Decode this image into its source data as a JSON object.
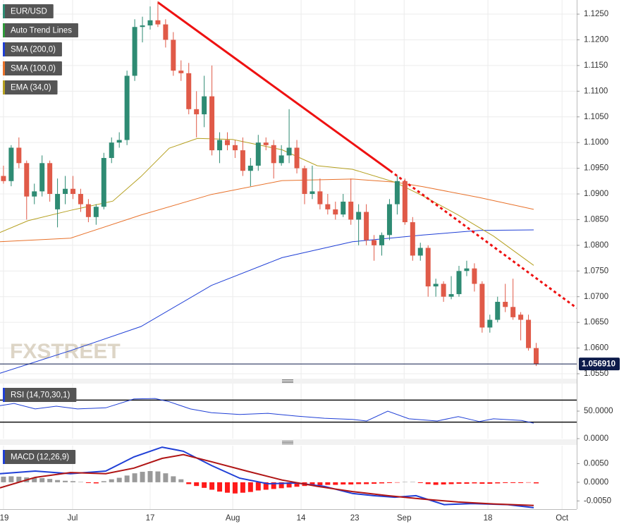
{
  "chart_data": [
    {
      "type": "candlestick",
      "watermark": "FXSTREET",
      "candles": {
        "name": "EUR/USD",
        "up_color": "#2e8b73",
        "down_color": "#e05a48",
        "x": [
          1,
          2,
          3,
          4,
          5,
          6,
          7,
          8,
          9,
          10,
          11,
          12,
          13,
          14,
          15,
          16,
          17,
          18,
          19,
          20,
          21,
          22,
          23,
          24,
          25,
          26,
          27,
          28,
          29,
          30,
          31,
          32,
          33,
          34,
          35,
          36,
          37,
          38,
          39,
          40,
          41,
          42,
          43,
          44,
          45,
          46,
          47,
          48,
          49,
          50,
          51,
          52,
          53,
          54,
          55,
          56,
          57,
          58,
          59,
          60,
          61,
          62,
          63,
          64,
          65,
          66,
          67,
          68,
          69,
          70
        ],
        "open": [
          1.0935,
          1.0925,
          1.099,
          1.096,
          1.0895,
          1.0905,
          1.096,
          1.087,
          1.09,
          1.091,
          1.09,
          1.088,
          1.0855,
          1.0875,
          1.097,
          1.1,
          1.1005,
          1.113,
          1.1225,
          1.1228,
          1.1238,
          1.123,
          1.12,
          1.114,
          1.1135,
          1.1065,
          1.1055,
          1.109,
          1.0985,
          1.1005,
          1.0995,
          1.0985,
          1.0945,
          1.0955,
          1.1,
          1.0995,
          1.096,
          1.0975,
          1.099,
          1.095,
          1.09,
          1.0905,
          1.088,
          1.087,
          1.086,
          1.0885,
          1.085,
          1.0865,
          1.081,
          1.08,
          1.082,
          1.088,
          1.0925,
          1.0845,
          1.078,
          1.0795,
          1.072,
          1.0725,
          1.07,
          1.0705,
          1.075,
          1.0755,
          1.0725,
          1.064,
          1.0655,
          1.069,
          1.068,
          1.0665,
          1.0655,
          1.06
        ],
        "high": [
          1.0955,
          1.0995,
          1.101,
          1.0965,
          1.092,
          1.0975,
          1.0965,
          1.093,
          1.0935,
          1.0935,
          1.091,
          1.089,
          1.088,
          1.098,
          1.101,
          1.102,
          1.114,
          1.124,
          1.1245,
          1.1265,
          1.1275,
          1.124,
          1.1215,
          1.116,
          1.1155,
          1.11,
          1.113,
          1.115,
          1.102,
          1.102,
          1.1005,
          1.101,
          1.097,
          1.1015,
          1.101,
          1.1005,
          1.0995,
          1.1065,
          1.1005,
          1.0955,
          1.0955,
          1.093,
          1.09,
          1.0885,
          1.09,
          1.093,
          1.088,
          1.088,
          1.082,
          1.0825,
          1.089,
          1.0935,
          1.093,
          1.0855,
          1.0805,
          1.08,
          1.0735,
          1.073,
          1.074,
          1.076,
          1.077,
          1.0765,
          1.073,
          1.0665,
          1.07,
          1.0725,
          1.0735,
          1.067,
          1.0665,
          1.061
        ],
        "low": [
          1.092,
          1.0915,
          1.095,
          1.085,
          1.088,
          1.0895,
          1.0885,
          1.0835,
          1.088,
          1.089,
          1.0865,
          1.0845,
          1.084,
          1.087,
          1.096,
          1.099,
          1.0995,
          1.112,
          1.1195,
          1.122,
          1.1225,
          1.1185,
          1.113,
          1.112,
          1.1055,
          1.101,
          1.103,
          1.0975,
          1.096,
          1.0985,
          1.097,
          1.0935,
          1.0915,
          1.0945,
          1.0985,
          1.093,
          1.0955,
          1.096,
          1.094,
          1.088,
          1.089,
          1.087,
          1.086,
          1.085,
          1.0855,
          1.084,
          1.08,
          1.08,
          1.077,
          1.078,
          1.081,
          1.086,
          1.084,
          1.077,
          1.077,
          1.07,
          1.07,
          1.069,
          1.0695,
          1.07,
          1.074,
          1.071,
          1.063,
          1.063,
          1.065,
          1.067,
          1.0655,
          1.0615,
          1.0595,
          1.0565
        ],
        "close": [
          1.0925,
          1.099,
          1.096,
          1.0895,
          1.0905,
          1.096,
          1.09,
          1.09,
          1.091,
          1.09,
          1.088,
          1.0855,
          1.0875,
          1.097,
          1.1,
          1.1005,
          1.113,
          1.1225,
          1.1228,
          1.1238,
          1.123,
          1.12,
          1.114,
          1.1135,
          1.1065,
          1.1055,
          1.109,
          1.0985,
          1.1005,
          1.0995,
          1.0985,
          1.0945,
          1.0955,
          1.1,
          1.0995,
          1.096,
          1.0975,
          1.099,
          1.095,
          1.09,
          1.0905,
          1.088,
          1.087,
          1.086,
          1.0885,
          1.085,
          1.0865,
          1.081,
          1.08,
          1.082,
          1.088,
          1.0925,
          1.0845,
          1.078,
          1.0795,
          1.072,
          1.0725,
          1.07,
          1.0705,
          1.075,
          1.0755,
          1.0725,
          1.064,
          1.0655,
          1.069,
          1.068,
          1.066,
          1.0655,
          1.06,
          1.05691
        ]
      },
      "trend_line": {
        "name": "Auto Trend Lines",
        "color": "#ee1111",
        "x": [
          21,
          51.1
        ],
        "values": [
          1.1273,
          1.0945
        ],
        "projection": {
          "x": [
            51.1,
            75.25
          ],
          "values": [
            1.0945,
            1.0678
          ]
        }
      },
      "overlays": [
        {
          "name": "SMA (200,0)",
          "color": "#1f3fd6",
          "x": [
            0.55,
            9.68,
            18.81,
            27.95,
            37.08,
            46.21,
            55.34,
            62.65,
            69.68
          ],
          "values": [
            1.0551,
            1.0595,
            1.0642,
            1.0722,
            1.0776,
            1.0807,
            1.082,
            1.0829,
            1.083
          ]
        },
        {
          "name": "SMA (100,0)",
          "color": "#e8712a",
          "x": [
            0.55,
            9.68,
            18.81,
            27.95,
            37.08,
            46.21,
            51.69,
            55.34,
            62.65,
            69.68
          ],
          "values": [
            1.0807,
            1.0814,
            1.0859,
            1.0899,
            1.0926,
            1.0929,
            1.0923,
            1.0914,
            1.0893,
            1.087
          ]
        },
        {
          "name": "EMA (34,0)",
          "color": "#b5a020",
          "x": [
            0.55,
            4.2,
            9.68,
            15.16,
            18.81,
            22.47,
            26.12,
            30.68,
            37.08,
            41.64,
            46.21,
            51.69,
            55.34,
            59.91,
            64.47,
            69.68
          ],
          "values": [
            1.0825,
            1.0848,
            1.0868,
            1.0886,
            1.0934,
            1.0989,
            1.1008,
            1.1006,
            1.0986,
            1.0955,
            1.0948,
            1.0923,
            1.0896,
            1.0859,
            1.0818,
            1.0761
          ]
        }
      ],
      "last_price": {
        "value": 1.05691,
        "label": "1.056910",
        "color": "#0d1b4a"
      },
      "xlim": [
        0.55,
        75.25
      ],
      "xticks": [
        {
          "value": 1,
          "label": "19"
        },
        {
          "value": 9.95,
          "label": "Jul"
        },
        {
          "value": 20,
          "label": "17"
        },
        {
          "value": 30.7,
          "label": "Aug"
        },
        {
          "value": 39.55,
          "label": "14"
        },
        {
          "value": 46.5,
          "label": "23"
        },
        {
          "value": 52.9,
          "label": "Sep"
        },
        {
          "value": 63.75,
          "label": "18"
        },
        {
          "value": 73.35,
          "label": "Oct"
        }
      ],
      "ylim": [
        1.05404,
        1.12775
      ],
      "yticks": [
        {
          "value": 1.125,
          "label": "1.1250"
        },
        {
          "value": 1.12,
          "label": "1.1200"
        },
        {
          "value": 1.115,
          "label": "1.1150"
        },
        {
          "value": 1.11,
          "label": "1.1100"
        },
        {
          "value": 1.105,
          "label": "1.1050"
        },
        {
          "value": 1.1,
          "label": "1.1000"
        },
        {
          "value": 1.095,
          "label": "1.0950"
        },
        {
          "value": 1.09,
          "label": "1.0900"
        },
        {
          "value": 1.085,
          "label": "1.0850"
        },
        {
          "value": 1.08,
          "label": "1.0800"
        },
        {
          "value": 1.075,
          "label": "1.0750"
        },
        {
          "value": 1.07,
          "label": "1.0700"
        },
        {
          "value": 1.065,
          "label": "1.0650"
        },
        {
          "value": 1.06,
          "label": "1.0600"
        },
        {
          "value": 1.055,
          "label": "1.0550"
        }
      ],
      "grid": true
    },
    {
      "type": "line",
      "title": "RSI (14,70,30,1)",
      "color": "#1f3fd6",
      "x": [
        0.55,
        2.37,
        5.11,
        7.85,
        10.59,
        14.25,
        17.9,
        20.64,
        22.47,
        25.21,
        27.95,
        31.6,
        35.25,
        38.9,
        42.56,
        46.21,
        48.04,
        50.78,
        53.52,
        57.17,
        59.91,
        62.65,
        64.47,
        68.13,
        69.68
      ],
      "values": [
        60,
        64,
        54,
        59,
        54,
        56,
        72,
        73,
        67,
        54,
        47,
        44,
        46,
        41,
        37,
        35,
        32,
        50,
        36,
        32,
        40,
        31,
        36,
        33,
        28
      ],
      "levels": [
        70,
        30
      ],
      "xlim": [
        0.55,
        75.25
      ],
      "ylim": [
        0,
        100
      ],
      "yticks": [
        {
          "value": 50,
          "label": "50.0000"
        },
        {
          "value": 0,
          "label": "0.0000"
        }
      ]
    },
    {
      "type": "macd",
      "title": "MACD (12,26,9)",
      "color": "#1f3fd6",
      "histogram": {
        "up_color": "#9a9a9a",
        "down_color": "#ff1a1a",
        "x": [
          1,
          2,
          3,
          4,
          5,
          6,
          7,
          8,
          9,
          10,
          11,
          12,
          13,
          14,
          15,
          16,
          17,
          18,
          19,
          20,
          21,
          22,
          23,
          24,
          25,
          26,
          27,
          28,
          29,
          30,
          31,
          32,
          33,
          34,
          35,
          36,
          37,
          38,
          39,
          40,
          41,
          42,
          43,
          44,
          45,
          46,
          47,
          48,
          49,
          50,
          51,
          52,
          53,
          54,
          55,
          56,
          57,
          58,
          59,
          60,
          61,
          62,
          63,
          64,
          65,
          66,
          67,
          68,
          69,
          70
        ],
        "values": [
          0.0015,
          0.0016,
          0.0015,
          0.0013,
          0.0012,
          0.0011,
          0.0009,
          0.0006,
          0.0004,
          0.0003,
          0.0001,
          -0.0002,
          -0.0003,
          0.0003,
          0.0008,
          0.0012,
          0.0018,
          0.0024,
          0.0028,
          0.003,
          0.0029,
          0.0024,
          0.0016,
          0.0008,
          -0.0005,
          -0.001,
          -0.0015,
          -0.002,
          -0.0025,
          -0.0028,
          -0.003,
          -0.0028,
          -0.0026,
          -0.0022,
          -0.002,
          -0.0018,
          -0.0016,
          -0.0014,
          -0.0012,
          -0.001,
          -0.0009,
          -0.0008,
          -0.0007,
          -0.0007,
          -0.0006,
          -0.0006,
          -0.0005,
          -0.0005,
          -0.0004,
          -0.0003,
          -0.0002,
          -0.0001,
          0.0001,
          0.0001,
          -0.0002,
          -0.0005,
          -0.0007,
          -0.0006,
          -0.0005,
          -0.0004,
          -0.0004,
          -0.0003,
          -0.0004,
          -0.0004,
          -0.0003,
          -0.0002,
          -0.0002,
          -0.0002,
          -0.0001,
          -0.0003
        ]
      },
      "series": [
        {
          "color": "#1f3fd6",
          "x": [
            0.55,
            5.11,
            9.68,
            14.25,
            17.9,
            21.55,
            24.29,
            27.95,
            31.6,
            35.25,
            38.9,
            42.56,
            46.21,
            48.95,
            51.69,
            54.43,
            58.08,
            61.74,
            66.3,
            69.68
          ],
          "values": [
            0.0023,
            0.003,
            0.0023,
            0.003,
            0.0068,
            0.0094,
            0.0083,
            0.0045,
            0.0011,
            -0.0004,
            -0.0002,
            -0.0011,
            -0.003,
            -0.0036,
            -0.004,
            -0.0036,
            -0.006,
            -0.0057,
            -0.006,
            -0.0068
          ]
        },
        {
          "color": "#b01515",
          "x": [
            0.55,
            5.11,
            9.68,
            14.25,
            17.9,
            21.55,
            24.29,
            27.95,
            32.51,
            37.08,
            41.64,
            46.21,
            50.78,
            55.34,
            59.91,
            64.47,
            69.68
          ],
          "values": [
            -0.0015,
            0.0013,
            0.0026,
            0.0023,
            0.0038,
            0.0064,
            0.0074,
            0.0055,
            0.003,
            0.0006,
            -0.0011,
            -0.0025,
            -0.0036,
            -0.0045,
            -0.0053,
            -0.0058,
            -0.0062
          ]
        }
      ],
      "xlim": [
        0.55,
        75.25
      ],
      "ylim": [
        -0.0072,
        0.0098
      ],
      "yticks": [
        {
          "value": 0.005,
          "label": "0.0050"
        },
        {
          "value": 0,
          "label": "0.0000"
        },
        {
          "value": -0.005,
          "label": "-0.0050"
        }
      ]
    }
  ]
}
